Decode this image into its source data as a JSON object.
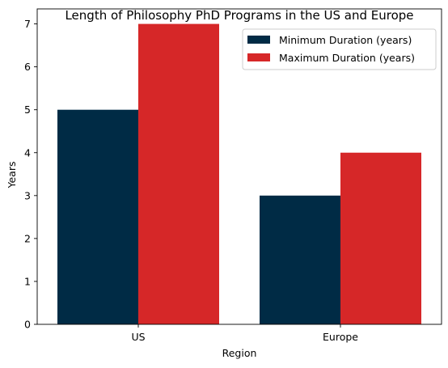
{
  "chart_data": {
    "type": "bar",
    "title": "Length of Philosophy PhD Programs in the US and Europe",
    "xlabel": "Region",
    "ylabel": "Years",
    "categories": [
      "US",
      "Europe"
    ],
    "series": [
      {
        "name": "Minimum Duration (years)",
        "values": [
          5,
          3
        ],
        "color": "#002b45"
      },
      {
        "name": "Maximum Duration (years)",
        "values": [
          7,
          4
        ],
        "color": "#d62728"
      }
    ],
    "ylim": [
      0,
      7.35
    ],
    "yticks": [
      0,
      1,
      2,
      3,
      4,
      5,
      6,
      7
    ],
    "grid": false,
    "legend_position": "top-right"
  }
}
